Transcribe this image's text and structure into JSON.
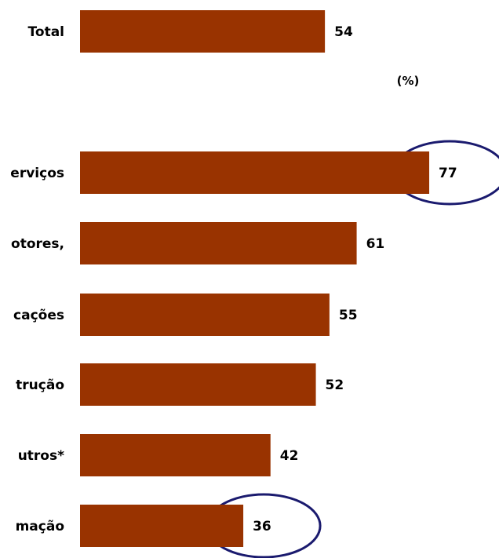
{
  "chart_data": {
    "type": "bar",
    "orientation": "horizontal",
    "unit_label": "(%)",
    "categories": [
      "Total",
      "erviços",
      "otores,",
      "cações",
      "trução",
      "utros*",
      "mação"
    ],
    "values": [
      54,
      77,
      61,
      55,
      52,
      42,
      36
    ],
    "value_labels": [
      "54",
      "77",
      "61",
      "55",
      "52",
      "42",
      "36"
    ],
    "highlighted": [
      "erviços",
      "mação"
    ],
    "bar_color": "#993300",
    "highlight_color": "#1a1a6e",
    "grid": false,
    "legend": "none"
  }
}
